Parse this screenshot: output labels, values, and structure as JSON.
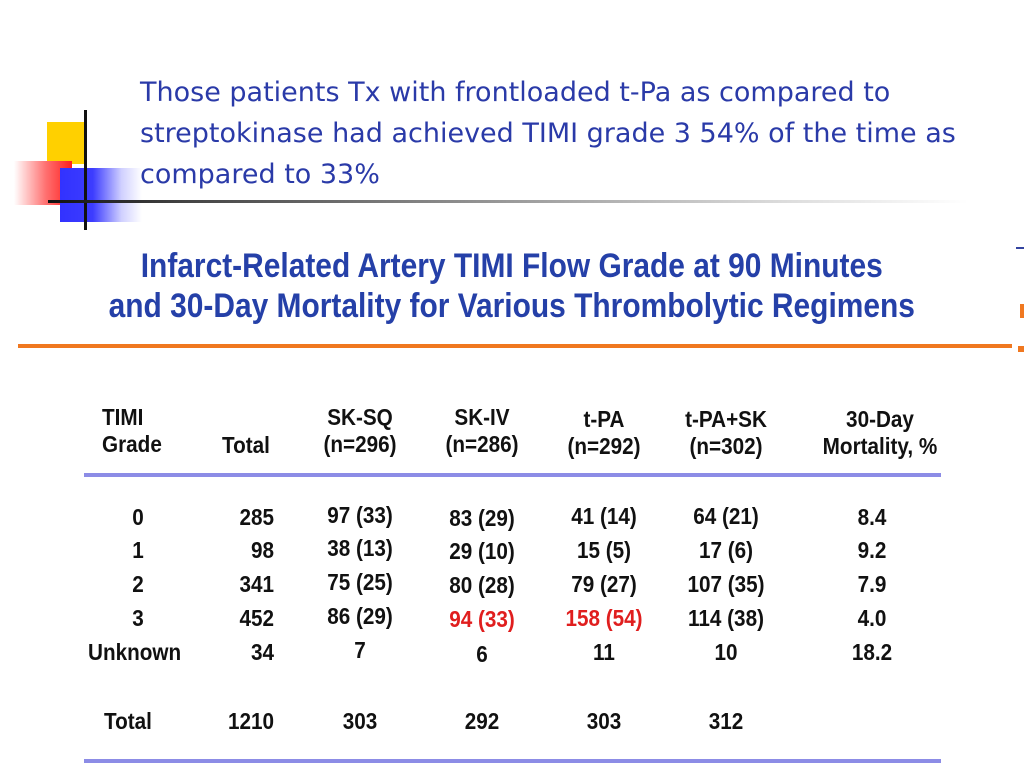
{
  "slide": {
    "title": "Those patients Tx with frontloaded t-Pa as compared to streptokinase had achieved TIMI grade 3 54% of the time as compared to 33%"
  },
  "figure": {
    "heading_line1": "Infarct-Related Artery TIMI Flow Grade at 90 Minutes",
    "heading_line2": "and 30-Day Mortality for Various Thrombolytic Regimens"
  },
  "table": {
    "columns": [
      {
        "line1": "TIMI",
        "line2": "Grade"
      },
      {
        "line1": "",
        "line2": "Total"
      },
      {
        "line1": "SK-SQ",
        "line2": "(n=296)"
      },
      {
        "line1": "SK-IV",
        "line2": "(n=286)"
      },
      {
        "line1": "t-PA",
        "line2": "(n=292)"
      },
      {
        "line1": "t-PA+SK",
        "line2": "(n=302)"
      },
      {
        "line1": "30-Day",
        "line2": "Mortality, %"
      }
    ],
    "rows": [
      {
        "grade": "0",
        "total": "285",
        "sk_sq": "97 (33)",
        "sk_iv": "83 (29)",
        "tpa": "41 (14)",
        "tpa_sk": "64 (21)",
        "mortality": "8.4"
      },
      {
        "grade": "1",
        "total": "98",
        "sk_sq": "38 (13)",
        "sk_iv": "29 (10)",
        "tpa": "15 (5)",
        "tpa_sk": "17 (6)",
        "mortality": "9.2"
      },
      {
        "grade": "2",
        "total": "341",
        "sk_sq": "75 (25)",
        "sk_iv": "80 (28)",
        "tpa": "79 (27)",
        "tpa_sk": "107 (35)",
        "mortality": "7.9"
      },
      {
        "grade": "3",
        "total": "452",
        "sk_sq": "86 (29)",
        "sk_iv": "94 (33)",
        "tpa": "158 (54)",
        "tpa_sk": "114 (38)",
        "mortality": "4.0"
      },
      {
        "grade": "Unknown",
        "total": "34",
        "sk_sq": "7",
        "sk_iv": "6",
        "tpa": "11",
        "tpa_sk": "10",
        "mortality": "18.2"
      }
    ],
    "totals": {
      "label": "Total",
      "total": "1210",
      "sk_sq": "303",
      "sk_iv": "292",
      "tpa": "303",
      "tpa_sk": "312",
      "mortality": ""
    },
    "highlight_color": "#e01e1e"
  },
  "colors": {
    "title": "#2a3aa8",
    "heading": "#2540a8",
    "orange_rule": "#f07820",
    "blue_rule": "#8c8ce6"
  }
}
